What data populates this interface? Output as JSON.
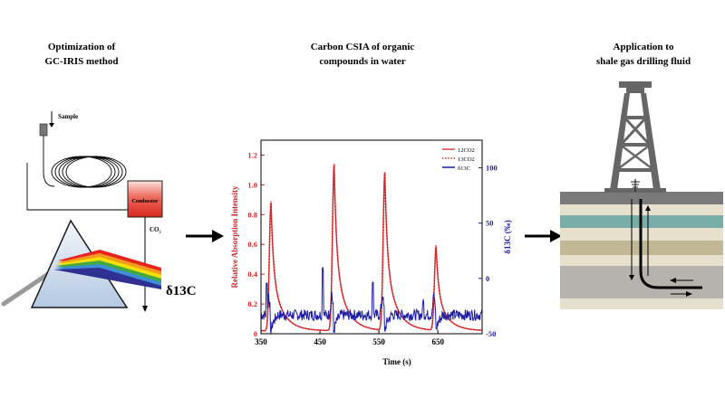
{
  "headings": {
    "left": [
      "Optimization of",
      "GC-IRIS method"
    ],
    "middle": [
      "Carbon CSIA  of organic",
      "compounds in water"
    ],
    "right": [
      "Application to",
      "shale gas drilling fluid"
    ]
  },
  "left_panel": {
    "sample_label": "Sample",
    "combustor_label": "Combustor",
    "co2_label": "CO₂",
    "delta_label": "δ13C"
  },
  "chart_data": {
    "type": "line",
    "xlabel": "Time (s)",
    "ylabel": "Relative Absorption Intensity",
    "y2label": "δ13C (‰)",
    "xlim": [
      350,
      725
    ],
    "ylim": [
      0,
      1.3
    ],
    "y2lim": [
      -50,
      125
    ],
    "xticks": [
      350,
      450,
      550,
      650
    ],
    "yticks": [
      0,
      0.2,
      0.4,
      0.6,
      0.8,
      1.0,
      1.2
    ],
    "y2ticks": [
      -50,
      0,
      50,
      100
    ],
    "legend": [
      "12CO2",
      "13CO2",
      "δ13C"
    ],
    "legend_position": "top-right",
    "peaks": [
      {
        "x": 367,
        "y12": 0.88,
        "y13": 0.89
      },
      {
        "x": 474,
        "y12": 1.13,
        "y13": 1.14
      },
      {
        "x": 560,
        "y12": 1.08,
        "y13": 1.08
      },
      {
        "x": 647,
        "y12": 0.58,
        "y13": 0.59
      }
    ],
    "baseline": 0.02,
    "delta_baseline": -33,
    "delta_spikes": [
      {
        "x": 360,
        "y": -5
      },
      {
        "x": 455,
        "y": 10
      },
      {
        "x": 540,
        "y": -2
      },
      {
        "x": 625,
        "y": -20
      }
    ],
    "series_colors": {
      "12CO2": "#d62728",
      "13CO2": "#d62728",
      "delta": "#1c1ca8"
    }
  }
}
